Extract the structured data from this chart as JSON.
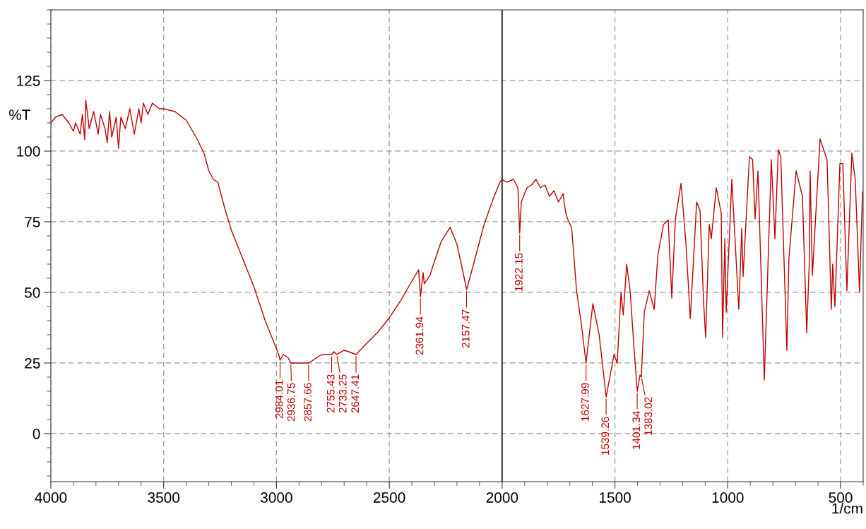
{
  "chart_data": {
    "type": "line",
    "xlabel": "1/cm",
    "ylabel": "%T",
    "xlim": [
      4000,
      400
    ],
    "ylim": [
      -17,
      150
    ],
    "xticks": [
      4000,
      3500,
      3000,
      2500,
      2000,
      1500,
      1000,
      500
    ],
    "yticks": [
      0,
      25,
      50,
      75,
      100,
      125
    ],
    "grid": true,
    "legend": false,
    "marker": "none",
    "line_style": "solid",
    "ref_lines": [
      {
        "axis": "x",
        "value": 2000,
        "label": null,
        "color": "#333333",
        "line_style": "solid"
      }
    ],
    "series": [
      {
        "color": "#c00000",
        "x": [
          4000,
          3980,
          3950,
          3920,
          3900,
          3890,
          3870,
          3860,
          3850,
          3845,
          3830,
          3810,
          3790,
          3780,
          3760,
          3750,
          3740,
          3730,
          3710,
          3700,
          3690,
          3670,
          3650,
          3630,
          3610,
          3600,
          3590,
          3570,
          3550,
          3520,
          3500,
          3450,
          3400,
          3350,
          3320,
          3300,
          3280,
          3260,
          3230,
          3200,
          3150,
          3100,
          3050,
          3000,
          2990,
          2984,
          2970,
          2950,
          2936,
          2900,
          2857,
          2800,
          2755,
          2745,
          2733,
          2700,
          2680,
          2647,
          2600,
          2550,
          2500,
          2450,
          2400,
          2370,
          2362,
          2350,
          2345,
          2320,
          2300,
          2270,
          2230,
          2200,
          2157,
          2120,
          2080,
          2040,
          2010,
          2000,
          1980,
          1950,
          1930,
          1922,
          1915,
          1890,
          1870,
          1850,
          1830,
          1810,
          1790,
          1770,
          1750,
          1730,
          1720,
          1710,
          1692,
          1670,
          1651,
          1628,
          1598,
          1570,
          1539,
          1504,
          1490,
          1473,
          1463,
          1448,
          1432,
          1417,
          1401,
          1389,
          1383,
          1370,
          1348,
          1326,
          1310,
          1285,
          1264,
          1248,
          1232,
          1207,
          1185,
          1166,
          1138,
          1123,
          1107,
          1098,
          1082,
          1073,
          1051,
          1029,
          1023,
          1013,
          1007,
          982,
          951,
          938,
          932,
          904,
          890,
          879,
          866,
          838,
          829,
          807,
          791,
          776,
          765,
          738,
          729,
          697,
          669,
          650,
          638,
          635,
          625,
          591,
          560,
          541,
          535,
          525,
          503,
          490,
          472,
          450,
          435,
          416,
          403,
          400
        ],
        "values": [
          110,
          112,
          113,
          110,
          107,
          110,
          106,
          113,
          104,
          118,
          108,
          114,
          106,
          113,
          108,
          103,
          114,
          105,
          112,
          101,
          112,
          108,
          115,
          106,
          115,
          110,
          117,
          113,
          117,
          115,
          115,
          114,
          111,
          104,
          99,
          93,
          90,
          89,
          80,
          72,
          62,
          52,
          40,
          30,
          28,
          26,
          28,
          27,
          25,
          25,
          25,
          28,
          28,
          29,
          28,
          29.5,
          29,
          28,
          32,
          36,
          41,
          47,
          54,
          58,
          48.5,
          57,
          53,
          56,
          61,
          68,
          73,
          67,
          51,
          62,
          74,
          83,
          89,
          90,
          89,
          90,
          87,
          71,
          82,
          87,
          88,
          90,
          87,
          88,
          84,
          86,
          82,
          85,
          79,
          76,
          73,
          50.6,
          40,
          25,
          46,
          35,
          13,
          28,
          25,
          50,
          42,
          60,
          50,
          32,
          15,
          20.7,
          20,
          43,
          50.6,
          44,
          63,
          74,
          75.6,
          48,
          76,
          88.6,
          67,
          40.7,
          82,
          79,
          46.4,
          34,
          74,
          69,
          87,
          78,
          34,
          69,
          43,
          90,
          44,
          72.6,
          55.6,
          98,
          97,
          76,
          93,
          19,
          41.4,
          97,
          69,
          100.5,
          98,
          29.5,
          62,
          93,
          84,
          35.7,
          62,
          93,
          56,
          104.3,
          97,
          44,
          60,
          45,
          95.6,
          95.6,
          50.6,
          99.3,
          90,
          50,
          85.6,
          85
        ]
      }
    ],
    "annotations": [
      {
        "text": "2984.01",
        "x": 2984.01,
        "y": 26
      },
      {
        "text": "2936.75",
        "x": 2936.75,
        "y": 25
      },
      {
        "text": "2857.66",
        "x": 2857.66,
        "y": 25
      },
      {
        "text": "2755.43",
        "x": 2755.43,
        "y": 28
      },
      {
        "text": "2733.25",
        "x": 2733.25,
        "y": 28
      },
      {
        "text": "2647.41",
        "x": 2647.41,
        "y": 28
      },
      {
        "text": "2361.94",
        "x": 2361.94,
        "y": 48.5
      },
      {
        "text": "2157.47",
        "x": 2157.47,
        "y": 51
      },
      {
        "text": "1922.15",
        "x": 1922.15,
        "y": 71
      },
      {
        "text": "1627.99",
        "x": 1627.99,
        "y": 25
      },
      {
        "text": "1539.26",
        "x": 1539.26,
        "y": 13
      },
      {
        "text": "1401.34",
        "x": 1401.34,
        "y": 15
      },
      {
        "text": "1383.02",
        "x": 1383.02,
        "y": 20
      }
    ]
  }
}
